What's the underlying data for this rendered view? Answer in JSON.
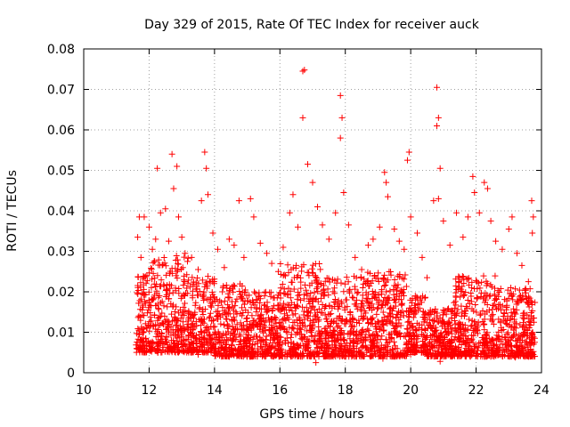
{
  "chart_data": {
    "type": "scatter",
    "title": "Day 329 of 2015, Rate Of TEC Index for receiver auck",
    "xlabel": "GPS time / hours",
    "ylabel": "ROTI / TECUs",
    "xlim": [
      10,
      24
    ],
    "ylim": [
      0,
      0.08
    ],
    "x_ticks": [
      10,
      12,
      14,
      16,
      18,
      20,
      22,
      24
    ],
    "x_tick_labels": [
      "10",
      "12",
      "14",
      "16",
      "18",
      "20",
      "22",
      "24"
    ],
    "y_ticks": [
      0,
      0.01,
      0.02,
      0.03,
      0.04,
      0.05,
      0.06,
      0.07,
      0.08
    ],
    "y_tick_labels": [
      "0",
      "0.01",
      "0.02",
      "0.03",
      "0.04",
      "0.05",
      "0.06",
      "0.07",
      "0.08"
    ],
    "grid": true,
    "marker": "+",
    "marker_color": "#ff0000",
    "series": [
      {
        "name": "ROTI",
        "points": [
          [
            11.65,
            0.0335
          ],
          [
            11.7,
            0.0385
          ],
          [
            11.75,
            0.0285
          ],
          [
            11.85,
            0.0385
          ],
          [
            12.0,
            0.036
          ],
          [
            12.1,
            0.0305
          ],
          [
            12.2,
            0.033
          ],
          [
            12.25,
            0.0505
          ],
          [
            12.35,
            0.0395
          ],
          [
            12.5,
            0.0405
          ],
          [
            12.6,
            0.0325
          ],
          [
            12.7,
            0.054
          ],
          [
            12.75,
            0.0455
          ],
          [
            12.85,
            0.051
          ],
          [
            12.9,
            0.0385
          ],
          [
            13.0,
            0.0335
          ],
          [
            13.1,
            0.0295
          ],
          [
            13.3,
            0.0285
          ],
          [
            13.5,
            0.0255
          ],
          [
            13.6,
            0.0425
          ],
          [
            13.7,
            0.0545
          ],
          [
            13.75,
            0.0505
          ],
          [
            13.8,
            0.044
          ],
          [
            13.95,
            0.0345
          ],
          [
            14.1,
            0.0305
          ],
          [
            14.3,
            0.026
          ],
          [
            14.45,
            0.033
          ],
          [
            14.6,
            0.0315
          ],
          [
            14.75,
            0.0425
          ],
          [
            14.9,
            0.0285
          ],
          [
            15.1,
            0.043
          ],
          [
            15.2,
            0.0385
          ],
          [
            15.4,
            0.032
          ],
          [
            15.6,
            0.0295
          ],
          [
            15.75,
            0.027
          ],
          [
            15.95,
            0.025
          ],
          [
            16.1,
            0.031
          ],
          [
            16.3,
            0.0395
          ],
          [
            16.4,
            0.044
          ],
          [
            16.55,
            0.036
          ],
          [
            16.7,
            0.0745
          ],
          [
            16.75,
            0.0748
          ],
          [
            16.7,
            0.063
          ],
          [
            16.85,
            0.0515
          ],
          [
            17.0,
            0.047
          ],
          [
            17.15,
            0.041
          ],
          [
            17.3,
            0.0365
          ],
          [
            17.5,
            0.033
          ],
          [
            17.7,
            0.0395
          ],
          [
            17.85,
            0.0685
          ],
          [
            17.9,
            0.063
          ],
          [
            17.85,
            0.058
          ],
          [
            17.95,
            0.0445
          ],
          [
            18.1,
            0.0365
          ],
          [
            18.3,
            0.0285
          ],
          [
            18.5,
            0.0255
          ],
          [
            18.7,
            0.0315
          ],
          [
            18.85,
            0.033
          ],
          [
            19.05,
            0.036
          ],
          [
            19.2,
            0.0495
          ],
          [
            19.25,
            0.047
          ],
          [
            19.3,
            0.0435
          ],
          [
            19.5,
            0.0355
          ],
          [
            19.65,
            0.0325
          ],
          [
            19.8,
            0.0305
          ],
          [
            19.9,
            0.0525
          ],
          [
            19.95,
            0.0545
          ],
          [
            20.0,
            0.0385
          ],
          [
            20.2,
            0.0345
          ],
          [
            20.35,
            0.0285
          ],
          [
            20.5,
            0.0235
          ],
          [
            20.7,
            0.0425
          ],
          [
            20.8,
            0.0705
          ],
          [
            20.85,
            0.063
          ],
          [
            20.8,
            0.061
          ],
          [
            20.9,
            0.0505
          ],
          [
            20.85,
            0.043
          ],
          [
            21.0,
            0.0375
          ],
          [
            21.2,
            0.0315
          ],
          [
            21.4,
            0.0395
          ],
          [
            21.6,
            0.0335
          ],
          [
            21.75,
            0.0385
          ],
          [
            21.9,
            0.0485
          ],
          [
            21.95,
            0.0445
          ],
          [
            22.1,
            0.0395
          ],
          [
            22.25,
            0.047
          ],
          [
            22.35,
            0.0455
          ],
          [
            22.45,
            0.0375
          ],
          [
            22.6,
            0.0325
          ],
          [
            22.8,
            0.0305
          ],
          [
            23.0,
            0.0355
          ],
          [
            23.1,
            0.0385
          ],
          [
            23.25,
            0.0295
          ],
          [
            23.4,
            0.0265
          ],
          [
            23.6,
            0.0225
          ],
          [
            23.7,
            0.0425
          ],
          [
            23.75,
            0.0385
          ],
          [
            23.72,
            0.0345
          ],
          [
            11.7,
            0.0095
          ],
          [
            11.9,
            0.0085
          ],
          [
            12.3,
            0.0075
          ],
          [
            12.6,
            0.006
          ],
          [
            13.0,
            0.0055
          ],
          [
            13.5,
            0.0045
          ],
          [
            14.0,
            0.005
          ],
          [
            14.5,
            0.0045
          ],
          [
            15.0,
            0.004
          ],
          [
            15.5,
            0.0045
          ],
          [
            16.0,
            0.005
          ],
          [
            16.5,
            0.0045
          ],
          [
            17.1,
            0.0025
          ],
          [
            17.5,
            0.0045
          ],
          [
            18.0,
            0.005
          ],
          [
            18.5,
            0.0045
          ],
          [
            19.15,
            0.0035
          ],
          [
            19.5,
            0.004
          ],
          [
            20.0,
            0.0045
          ],
          [
            20.5,
            0.0045
          ],
          [
            20.9,
            0.0028
          ],
          [
            21.3,
            0.005
          ],
          [
            21.8,
            0.0045
          ],
          [
            22.2,
            0.004
          ],
          [
            22.7,
            0.0045
          ],
          [
            23.2,
            0.0038
          ],
          [
            23.6,
            0.004
          ],
          [
            23.75,
            0.0045
          ]
        ],
        "dense_band": [
          {
            "x": [
              11.6,
              12.0
            ],
            "y_min": 0.005,
            "y_max": 0.024
          },
          {
            "x": [
              12.0,
              13.2
            ],
            "y_min": 0.005,
            "y_max": 0.029
          },
          {
            "x": [
              13.2,
              14.0
            ],
            "y_min": 0.005,
            "y_max": 0.024
          },
          {
            "x": [
              14.0,
              15.0
            ],
            "y_min": 0.004,
            "y_max": 0.022
          },
          {
            "x": [
              15.0,
              16.0
            ],
            "y_min": 0.004,
            "y_max": 0.02
          },
          {
            "x": [
              16.0,
              17.3
            ],
            "y_min": 0.004,
            "y_max": 0.027
          },
          {
            "x": [
              17.3,
              18.6
            ],
            "y_min": 0.004,
            "y_max": 0.024
          },
          {
            "x": [
              18.6,
              19.9
            ],
            "y_min": 0.004,
            "y_max": 0.025
          },
          {
            "x": [
              19.9,
              20.5
            ],
            "y_min": 0.005,
            "y_max": 0.019
          },
          {
            "x": [
              20.5,
              21.3
            ],
            "y_min": 0.004,
            "y_max": 0.016
          },
          {
            "x": [
              21.3,
              22.6
            ],
            "y_min": 0.004,
            "y_max": 0.024
          },
          {
            "x": [
              22.6,
              23.8
            ],
            "y_min": 0.004,
            "y_max": 0.021
          }
        ]
      }
    ]
  }
}
